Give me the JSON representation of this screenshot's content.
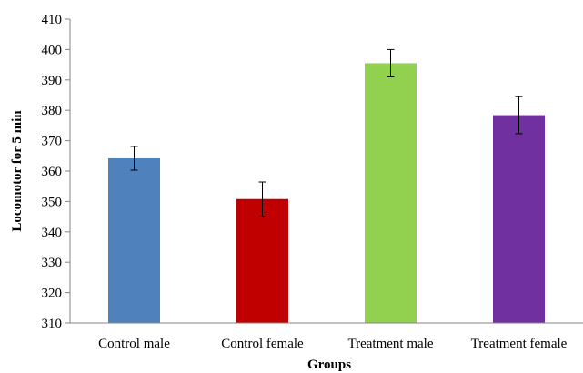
{
  "chart_data": {
    "type": "bar",
    "title": "",
    "xlabel": "Groups",
    "ylabel": "Locomotor for 5 min",
    "ylim": [
      310,
      410
    ],
    "ytick_step": 10,
    "grid": false,
    "legend": "none",
    "categories": [
      "Control male",
      "Control female",
      "Treatment male",
      "Treatment female"
    ],
    "values": [
      364.2,
      350.8,
      395.5,
      378.4
    ],
    "errors": [
      3.9,
      5.6,
      4.5,
      6.1
    ],
    "colors": [
      "#4F81BD",
      "#C00000",
      "#92D050",
      "#7030A0"
    ]
  }
}
